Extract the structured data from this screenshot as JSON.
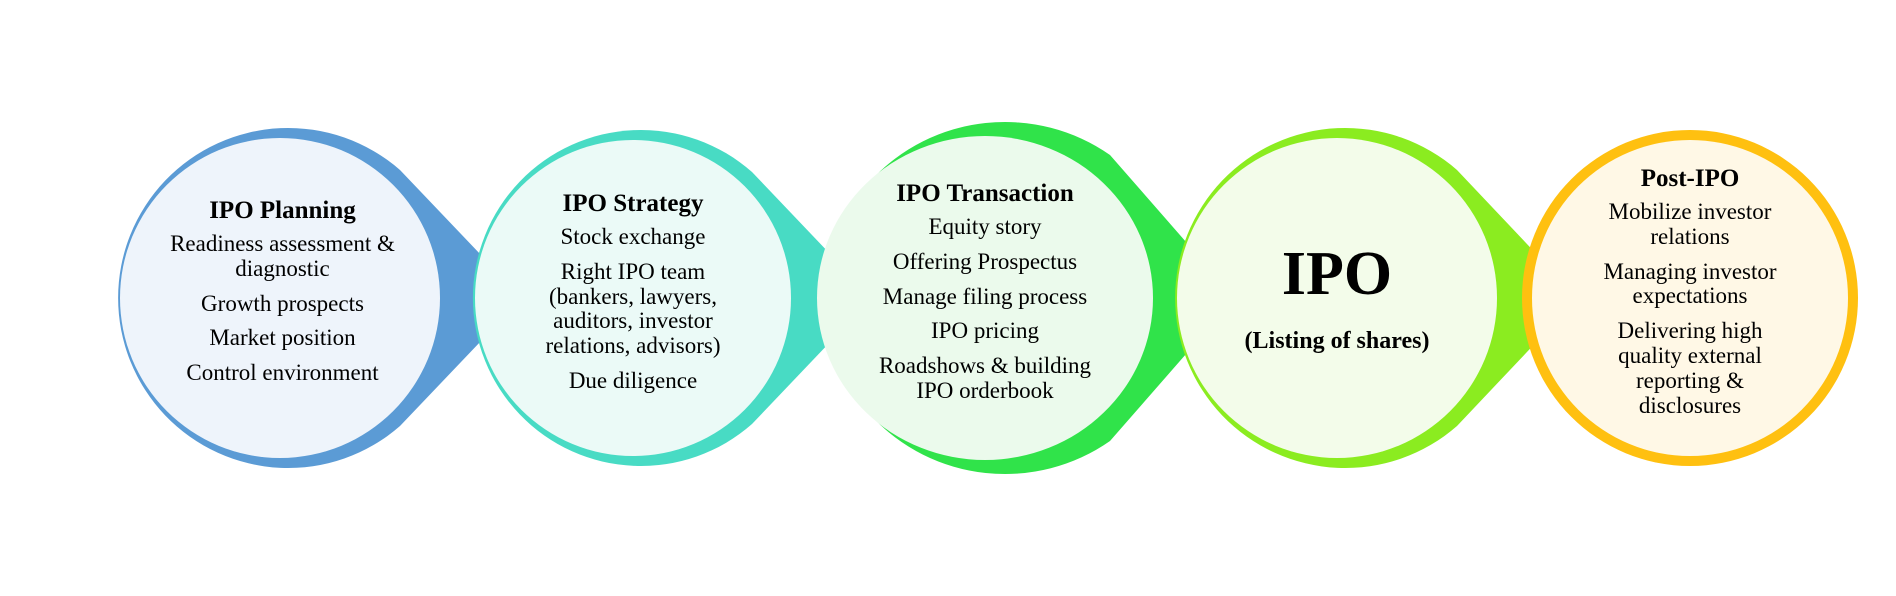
{
  "stages": [
    {
      "title": "IPO Planning",
      "items": [
        "Readiness assessment & diagnostic",
        "Growth prospects",
        "Market position",
        "Control environment"
      ],
      "stroke": "#5B9BD5",
      "fill": "#EEF4FB"
    },
    {
      "title": "IPO Strategy",
      "items": [
        "Stock exchange",
        "Right IPO team (bankers, lawyers, auditors, investor relations, advisors)",
        "Due diligence"
      ],
      "stroke": "#48DBC4",
      "fill": "#EBFAF7"
    },
    {
      "title": "IPO Transaction",
      "items": [
        "Equity story",
        "Offering Prospectus",
        "Manage filing process",
        "IPO pricing",
        "Roadshows & building IPO orderbook"
      ],
      "stroke": "#30E34A",
      "fill": "#EBFAEC"
    },
    {
      "title": "IPO",
      "subtitle": "(Listing of shares)",
      "stroke": "#8BEC20",
      "fill": "#F3FCEA"
    },
    {
      "title": "Post-IPO",
      "items": [
        "Mobilize investor relations",
        "Managing investor expectations",
        "Delivering high quality external reporting & disclosures"
      ],
      "stroke": "#FFC010",
      "fill": "#FFF8E6"
    }
  ]
}
